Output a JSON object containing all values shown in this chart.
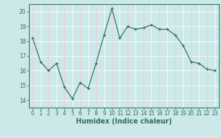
{
  "x": [
    0,
    1,
    2,
    3,
    4,
    5,
    6,
    7,
    8,
    9,
    10,
    11,
    12,
    13,
    14,
    15,
    16,
    17,
    18,
    19,
    20,
    21,
    22,
    23
  ],
  "y": [
    18.2,
    16.6,
    16.0,
    16.5,
    14.9,
    14.1,
    15.2,
    14.8,
    16.5,
    18.4,
    20.2,
    18.2,
    19.0,
    18.8,
    18.9,
    19.1,
    18.8,
    18.8,
    18.4,
    17.7,
    16.6,
    16.5,
    16.1,
    16.0
  ],
  "xlim": [
    -0.5,
    23.5
  ],
  "ylim": [
    13.5,
    20.5
  ],
  "yticks": [
    14,
    15,
    16,
    17,
    18,
    19,
    20
  ],
  "xticks": [
    0,
    1,
    2,
    3,
    4,
    5,
    6,
    7,
    8,
    9,
    10,
    11,
    12,
    13,
    14,
    15,
    16,
    17,
    18,
    19,
    20,
    21,
    22,
    23
  ],
  "xlabel": "Humidex (Indice chaleur)",
  "line_color": "#2d7060",
  "marker": "+",
  "bg_color": "#cce8e8",
  "grid_white": "#ffffff",
  "grid_pink": "#f5c8c8",
  "tick_fontsize": 5.5,
  "xlabel_fontsize": 7.0
}
